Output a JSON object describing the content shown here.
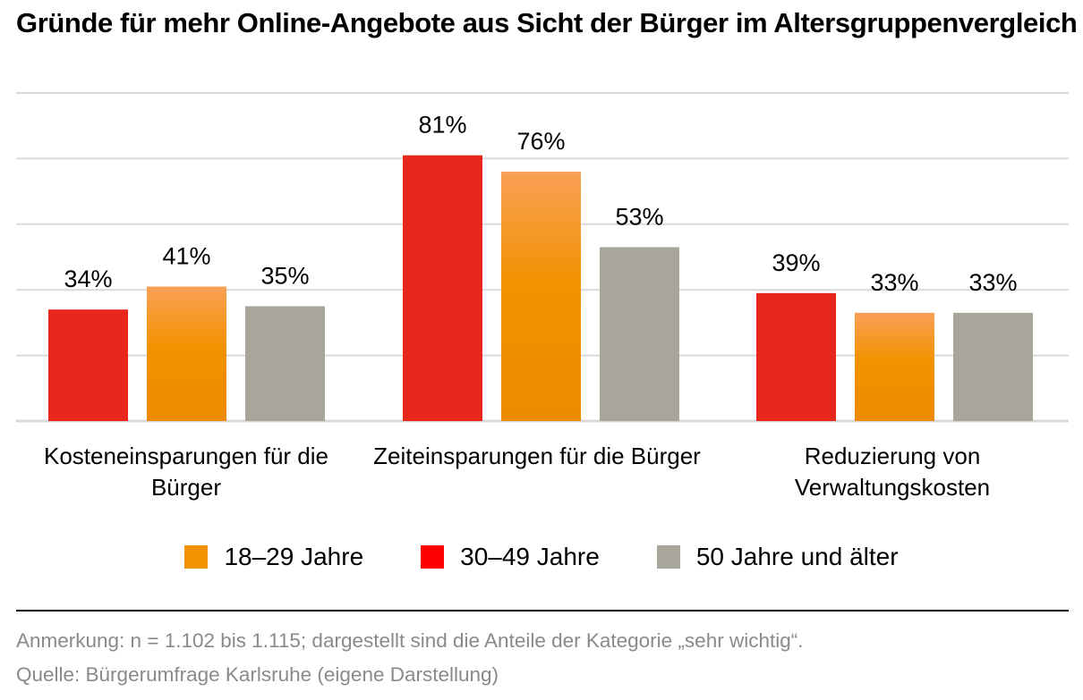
{
  "title": "Gründe für mehr Online-Angebote aus Sicht der Bürger im Altersgruppenvergleich",
  "chart_data": {
    "type": "bar",
    "categories": [
      "Kosteneinsparungen für die Bürger",
      "Zeiteinsparungen für die Bürger",
      "Reduzierung von Verwaltungskosten"
    ],
    "category_lines": [
      [
        "Kosteneinsparungen für die",
        "Bürger"
      ],
      [
        "Zeiteinsparungen für die Bürger"
      ],
      [
        "Reduzierung von",
        "Verwaltungskosten"
      ]
    ],
    "series": [
      {
        "name": "30–49 Jahre",
        "values": [
          34,
          81,
          39
        ],
        "labels": [
          "34%",
          "81%",
          "39%"
        ],
        "color": "#e8261c"
      },
      {
        "name": "18–29 Jahre",
        "values": [
          41,
          76,
          33
        ],
        "labels": [
          "41%",
          "76%",
          "33%"
        ],
        "color": "#f39200"
      },
      {
        "name": "50 Jahre und älter",
        "values": [
          35,
          53,
          33
        ],
        "labels": [
          "35%",
          "53%",
          "33%"
        ],
        "color": "#a8a59a"
      }
    ],
    "ylim": [
      0,
      100
    ],
    "grid": true,
    "legend_order": [
      "18–29 Jahre",
      "30–49 Jahre",
      "50 Jahre und älter"
    ],
    "legend_placement": "bottom"
  },
  "legend": [
    {
      "label": "18–29 Jahre",
      "color": "#f39200"
    },
    {
      "label": "30–49 Jahre",
      "color": "#e8261c"
    },
    {
      "label": "50 Jahre und älter",
      "color": "#a8a59a"
    }
  ],
  "footer": {
    "note": "Anmerkung: n = 1.102 bis 1.115; dargestellt sind die Anteile der Kategorie „sehr wichtig“.",
    "source": "Quelle: Bürgerumfrage Karlsruhe (eigene Darstellung)"
  }
}
